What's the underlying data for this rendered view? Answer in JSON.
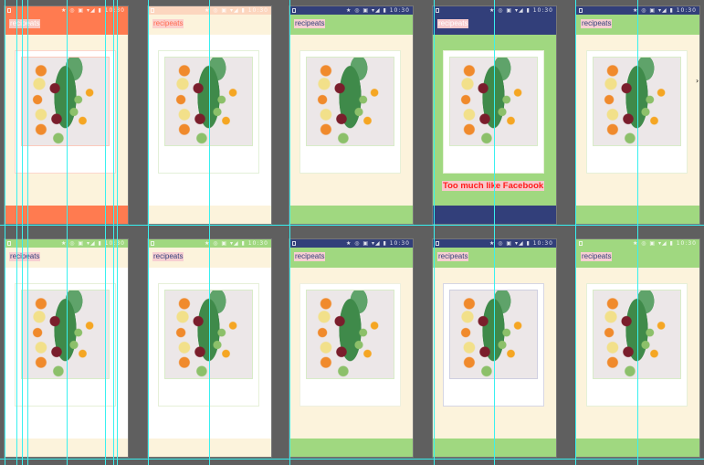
{
  "status_time": "10:30",
  "app_title": "recipeats",
  "colors": {
    "orange": "#ff7b50",
    "peach": "#fcd6bf",
    "cream": "#fcf3dc",
    "white": "#ffffff",
    "navy": "#323f7a",
    "green": "#a0d880",
    "guide": "#38f0f0"
  },
  "screens": [
    {
      "row": 0,
      "col": 0,
      "status": "#ff7b50",
      "appbar": "#ff7b50",
      "body": "#fcf3dc",
      "bottom": "#ff7b50",
      "card_border": "#fcd6cc",
      "photo_border": "#fcc9bb",
      "title_color": "#ffffff",
      "title_bg": "#f9c5bd"
    },
    {
      "row": 0,
      "col": 1,
      "status": "#fcd6bf",
      "appbar": "#fcf3dc",
      "body": "#ffffff",
      "bottom": "#fcf3dc",
      "card_border": "#e3f0d8",
      "photo_border": "#d8ecc8",
      "title_color": "#ff6a50",
      "title_bg": "#fcd0cc"
    },
    {
      "row": 0,
      "col": 2,
      "status": "#323f7a",
      "appbar": "#a0d880",
      "body": "#fcf3dc",
      "bottom": "#a0d880",
      "card_border": "#e6f0d8",
      "photo_border": "#d8ecc8",
      "title_color": "#323f7a",
      "title_bg": "#f7cfd2"
    },
    {
      "row": 0,
      "col": 3,
      "status": "#323f7a",
      "appbar": "#323f7a",
      "body": "#a0d880",
      "bottom": "#323f7a",
      "card_border": "#e6f0d8",
      "photo_border": "#d8ecc8",
      "title_color": "#ffffff",
      "title_bg": "#f7c9cc",
      "note": "Too much like Facebook"
    },
    {
      "row": 0,
      "col": 4,
      "status": "#323f7a",
      "appbar": "#a0d880",
      "body": "#fcf3dc",
      "bottom": "#a0d880",
      "card_border": "#e6f0d8",
      "photo_border": "#d8ecc8",
      "title_color": "#323f7a",
      "title_bg": "#f7cfd2"
    },
    {
      "row": 1,
      "col": 0,
      "status": "#a0d880",
      "appbar": "#fcf3dc",
      "body": "#ffffff",
      "bottom": "#fcf3dc",
      "card_border": "#e6f0d8",
      "photo_border": "#d8ecc8",
      "title_color": "#323f7a",
      "title_bg": "#f7cfd2"
    },
    {
      "row": 1,
      "col": 1,
      "status": "#a0d880",
      "appbar": "#fcf3dc",
      "body": "#ffffff",
      "bottom": "#fcf3dc",
      "card_border": "#e6f0d8",
      "photo_border": "#d8ecc8",
      "title_color": "#323f7a",
      "title_bg": "#f7cfd2"
    },
    {
      "row": 1,
      "col": 2,
      "status": "#323f7a",
      "appbar": "#a0d880",
      "body": "#fcf3dc",
      "bottom": "#a0d880",
      "card_border": "#eef0e0",
      "photo_border": "#d8ecc8",
      "title_color": "#323f7a",
      "title_bg": "#f7cfd2"
    },
    {
      "row": 1,
      "col": 3,
      "status": "#323f7a",
      "appbar": "#a0d880",
      "body": "#fcf3dc",
      "bottom": "#a0d880",
      "card_border": "#d6d6e4",
      "photo_border": "#cfcfe0",
      "title_color": "#323f7a",
      "title_bg": "#f7cfd2"
    },
    {
      "row": 1,
      "col": 4,
      "status": "#a0d880",
      "appbar": "#a0d880",
      "body": "#fcf3dc",
      "bottom": "#a0d880",
      "card_border": "#e6f0d8",
      "photo_border": "#d8ecc8",
      "title_color": "#323f7a",
      "title_bg": "#f7cfd2"
    }
  ]
}
